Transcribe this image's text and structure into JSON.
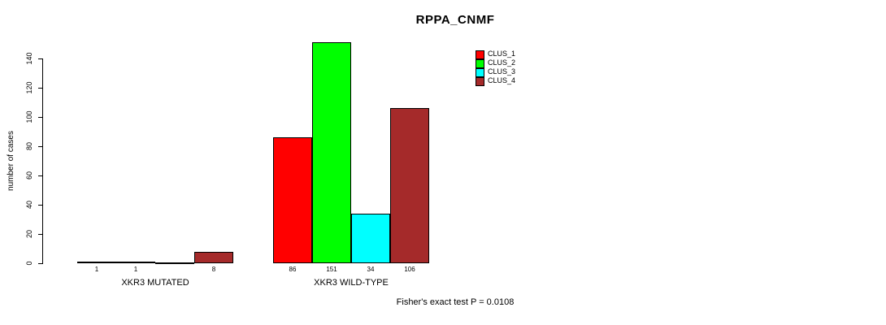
{
  "title": "RPPA_CNMF",
  "ylabel": "number of cases",
  "footer": "Fisher's exact test P = 0.0108",
  "chart_data": {
    "type": "bar",
    "categories": [
      "XKR3 MUTATED",
      "XKR3 WILD-TYPE"
    ],
    "series": [
      {
        "name": "CLUS_1",
        "color": "#FF0000",
        "values": [
          1,
          86
        ]
      },
      {
        "name": "CLUS_2",
        "color": "#00FF00",
        "values": [
          1,
          151
        ]
      },
      {
        "name": "CLUS_3",
        "color": "#00FFFF",
        "values": [
          0,
          34
        ]
      },
      {
        "name": "CLUS_4",
        "color": "#A52A2A",
        "values": [
          8,
          106
        ]
      }
    ],
    "value_labels": [
      [
        "1",
        "1",
        "",
        "8"
      ],
      [
        "86",
        "151",
        "34",
        "106"
      ]
    ],
    "yticks": [
      0,
      20,
      40,
      60,
      80,
      100,
      120,
      140
    ],
    "ylim": [
      0,
      155
    ],
    "ylabel": "number of cases",
    "legend_position": "top-right",
    "grid": false
  }
}
